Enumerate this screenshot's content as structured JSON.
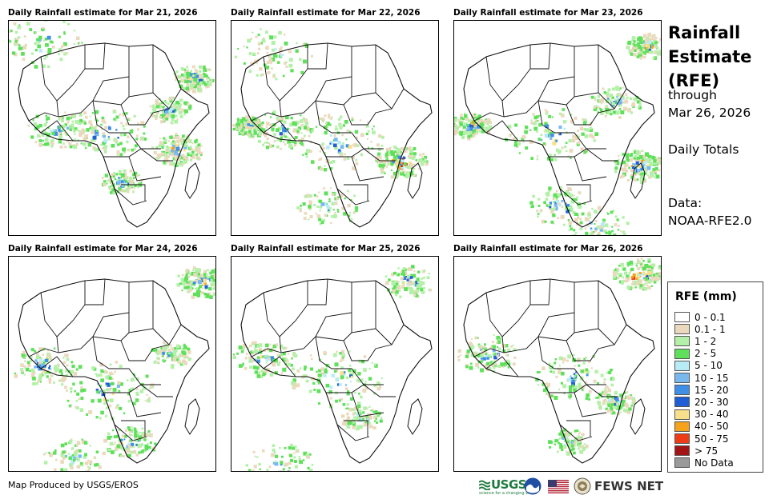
{
  "panels": [
    {
      "title": "Daily Rainfall estimate for Mar 21, 2026"
    },
    {
      "title": "Daily Rainfall estimate for Mar 22, 2026"
    },
    {
      "title": "Daily Rainfall estimate for Mar 23, 2026"
    },
    {
      "title": "Daily Rainfall estimate for Mar 24, 2026"
    },
    {
      "title": "Daily Rainfall estimate for Mar 25, 2026"
    },
    {
      "title": "Daily Rainfall estimate for Mar 26, 2026"
    }
  ],
  "side": {
    "title_lines": [
      "Rainfall",
      "Estimate",
      "(RFE)"
    ],
    "through_label": "through",
    "through_date": "Mar 26, 2026",
    "totals_label": "Daily Totals",
    "data_label": "Data:",
    "data_source": "NOAA-RFE2.0"
  },
  "legend": {
    "title": "RFE (mm)",
    "items": [
      {
        "label": "0 - 0.1",
        "color": "#ffffff"
      },
      {
        "label": "0.1 - 1",
        "color": "#ead9bd"
      },
      {
        "label": "1 - 2",
        "color": "#b3f0a8"
      },
      {
        "label": "2 - 5",
        "color": "#5fe05a"
      },
      {
        "label": "5 - 10",
        "color": "#b7ecf7"
      },
      {
        "label": "10 - 15",
        "color": "#79b8ef"
      },
      {
        "label": "15 - 20",
        "color": "#3f8fe6"
      },
      {
        "label": "20 - 30",
        "color": "#1f5ed6"
      },
      {
        "label": "30 - 40",
        "color": "#f8e08a"
      },
      {
        "label": "40 - 50",
        "color": "#f5a21c"
      },
      {
        "label": "50 - 75",
        "color": "#ee3c17"
      },
      {
        "label": "> 75",
        "color": "#a31515"
      },
      {
        "label": "No Data",
        "color": "#9a9a9a"
      }
    ]
  },
  "footer": {
    "credit": "Map Produced by USGS/EROS",
    "usgs_logo_text": "USGS",
    "usgs_tagline": "science for a changing world",
    "fews_logo_text": "FEWS NET"
  }
}
